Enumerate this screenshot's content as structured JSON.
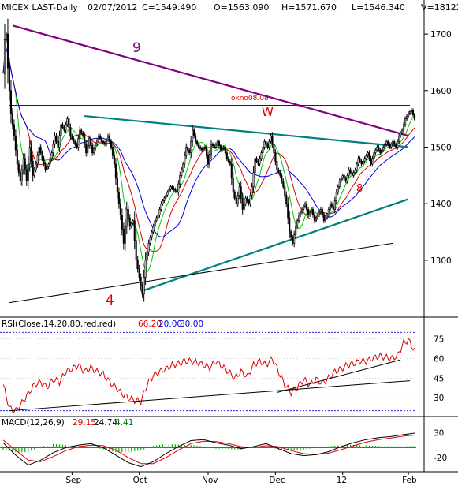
{
  "header": {
    "symbol": "MICEX LAST-Daily",
    "date": "02/07/2012",
    "close": "C=1549.490",
    "open": "O=1563.090",
    "high": "H=1571.670",
    "low": "L=1546.340",
    "volume": "V=18122"
  },
  "colors": {
    "background": "#ffffff",
    "candle_up": "#ffffff",
    "candle_down": "#000000",
    "ma_short": "#00cc00",
    "ma_mid": "#dd0000",
    "ma_long": "#0000dd",
    "trend_resistance": "#800080",
    "trend_teal": "#008080",
    "rsi": "#dd0000",
    "macd": "#000000",
    "macd_signal": "#dd0000",
    "macd_hist": "#00aa00"
  },
  "annotations": {
    "wave_9": "9",
    "wave_4": "4",
    "wave_8": "8",
    "wave_w": "W",
    "okno": "okno08.08"
  },
  "chart_data": [
    {
      "type": "candlestick",
      "title": "MICEX LAST-Daily",
      "ylim": [
        1205,
        1735
      ],
      "y_ticks": [
        1300,
        1400,
        1500,
        1600,
        1700
      ],
      "x_tick_labels": [
        "Sep",
        "Oct",
        "Nov",
        "Dec",
        "12",
        "Feb"
      ],
      "x_tick_days": [
        44,
        87,
        131,
        174,
        217,
        259
      ],
      "grid": false,
      "last_close": 1549.49,
      "horizontal_level": 1574,
      "close_path": [
        [
          0,
          1630
        ],
        [
          1,
          1690
        ],
        [
          2,
          1700
        ],
        [
          3,
          1640
        ],
        [
          5,
          1560
        ],
        [
          7,
          1520
        ],
        [
          9,
          1470
        ],
        [
          11,
          1440
        ],
        [
          13,
          1480
        ],
        [
          15,
          1440
        ],
        [
          17,
          1500
        ],
        [
          19,
          1450
        ],
        [
          21,
          1470
        ],
        [
          23,
          1500
        ],
        [
          25,
          1480
        ],
        [
          27,
          1460
        ],
        [
          29,
          1470
        ],
        [
          31,
          1490
        ],
        [
          33,
          1520
        ],
        [
          35,
          1500
        ],
        [
          37,
          1540
        ],
        [
          39,
          1530
        ],
        [
          41,
          1550
        ],
        [
          43,
          1520
        ],
        [
          45,
          1510
        ],
        [
          47,
          1500
        ],
        [
          49,
          1530
        ],
        [
          51,
          1520
        ],
        [
          53,
          1490
        ],
        [
          55,
          1515
        ],
        [
          57,
          1490
        ],
        [
          59,
          1505
        ],
        [
          61,
          1520
        ],
        [
          63,
          1510
        ],
        [
          65,
          1505
        ],
        [
          67,
          1520
        ],
        [
          69,
          1500
        ],
        [
          71,
          1470
        ],
        [
          73,
          1420
        ],
        [
          75,
          1380
        ],
        [
          77,
          1330
        ],
        [
          79,
          1390
        ],
        [
          81,
          1360
        ],
        [
          83,
          1370
        ],
        [
          85,
          1300
        ],
        [
          87,
          1270
        ],
        [
          89,
          1240
        ],
        [
          91,
          1300
        ],
        [
          93,
          1330
        ],
        [
          95,
          1350
        ],
        [
          97,
          1370
        ],
        [
          99,
          1380
        ],
        [
          101,
          1400
        ],
        [
          103,
          1410
        ],
        [
          105,
          1420
        ],
        [
          107,
          1430
        ],
        [
          109,
          1425
        ],
        [
          111,
          1420
        ],
        [
          113,
          1450
        ],
        [
          115,
          1470
        ],
        [
          117,
          1500
        ],
        [
          119,
          1490
        ],
        [
          121,
          1530
        ],
        [
          123,
          1510
        ],
        [
          125,
          1500
        ],
        [
          127,
          1495
        ],
        [
          129,
          1500
        ],
        [
          131,
          1470
        ],
        [
          133,
          1505
        ],
        [
          135,
          1500
        ],
        [
          137,
          1510
        ],
        [
          139,
          1495
        ],
        [
          141,
          1500
        ],
        [
          143,
          1480
        ],
        [
          145,
          1470
        ],
        [
          147,
          1420
        ],
        [
          149,
          1400
        ],
        [
          151,
          1430
        ],
        [
          153,
          1390
        ],
        [
          155,
          1410
        ],
        [
          157,
          1400
        ],
        [
          159,
          1430
        ],
        [
          161,
          1480
        ],
        [
          163,
          1470
        ],
        [
          165,
          1490
        ],
        [
          167,
          1510
        ],
        [
          169,
          1500
        ],
        [
          171,
          1520
        ],
        [
          173,
          1490
        ],
        [
          175,
          1460
        ],
        [
          177,
          1450
        ],
        [
          179,
          1430
        ],
        [
          181,
          1400
        ],
        [
          183,
          1350
        ],
        [
          185,
          1330
        ],
        [
          187,
          1360
        ],
        [
          189,
          1380
        ],
        [
          191,
          1390
        ],
        [
          193,
          1400
        ],
        [
          195,
          1380
        ],
        [
          197,
          1390
        ],
        [
          199,
          1370
        ],
        [
          201,
          1380
        ],
        [
          203,
          1390
        ],
        [
          205,
          1370
        ],
        [
          207,
          1380
        ],
        [
          209,
          1400
        ],
        [
          211,
          1390
        ],
        [
          213,
          1420
        ],
        [
          215,
          1440
        ],
        [
          217,
          1450
        ],
        [
          219,
          1440
        ],
        [
          221,
          1460
        ],
        [
          223,
          1450
        ],
        [
          225,
          1460
        ],
        [
          227,
          1480
        ],
        [
          229,
          1470
        ],
        [
          231,
          1480
        ],
        [
          233,
          1490
        ],
        [
          235,
          1470
        ],
        [
          237,
          1490
        ],
        [
          239,
          1500
        ],
        [
          241,
          1490
        ],
        [
          243,
          1500
        ],
        [
          245,
          1510
        ],
        [
          247,
          1500
        ],
        [
          249,
          1510
        ],
        [
          251,
          1500
        ],
        [
          253,
          1520
        ],
        [
          255,
          1530
        ],
        [
          257,
          1550
        ],
        [
          259,
          1560
        ],
        [
          261,
          1565
        ],
        [
          263,
          1549
        ]
      ],
      "series": [
        {
          "name": "",
          "values": "moving averages (green, red, blue)"
        }
      ],
      "trendlines": [
        {
          "label": "9",
          "from": [
            6,
            1715
          ],
          "to": [
            259,
            1520
          ]
        },
        {
          "label": "",
          "from": [
            52,
            1555
          ],
          "to": [
            259,
            1500
          ]
        },
        {
          "label": "",
          "from": [
            88,
            1245
          ],
          "to": [
            259,
            1408
          ]
        },
        {
          "label": "",
          "from": [
            4,
            1225
          ],
          "to": [
            249,
            1330
          ]
        }
      ]
    },
    {
      "type": "line",
      "title": "RSI(Close,14,20,80,red,red)",
      "legend": [
        "66.20",
        "20.00",
        "80.00"
      ],
      "ylim": [
        18,
        82
      ],
      "y_ticks": [
        30,
        45,
        60,
        75
      ],
      "levels": [
        20,
        80
      ],
      "last_value": 66.2,
      "values": [
        [
          0,
          40
        ],
        [
          4,
          22
        ],
        [
          8,
          20
        ],
        [
          12,
          26
        ],
        [
          16,
          33
        ],
        [
          20,
          40
        ],
        [
          24,
          42
        ],
        [
          28,
          38
        ],
        [
          32,
          44
        ],
        [
          36,
          42
        ],
        [
          40,
          50
        ],
        [
          44,
          52
        ],
        [
          48,
          55
        ],
        [
          52,
          50
        ],
        [
          56,
          53
        ],
        [
          60,
          50
        ],
        [
          64,
          48
        ],
        [
          68,
          42
        ],
        [
          72,
          38
        ],
        [
          76,
          33
        ],
        [
          80,
          30
        ],
        [
          84,
          28
        ],
        [
          88,
          27
        ],
        [
          92,
          40
        ],
        [
          96,
          47
        ],
        [
          100,
          50
        ],
        [
          104,
          52
        ],
        [
          108,
          55
        ],
        [
          112,
          56
        ],
        [
          116,
          58
        ],
        [
          120,
          58
        ],
        [
          124,
          57
        ],
        [
          128,
          55
        ],
        [
          132,
          53
        ],
        [
          136,
          58
        ],
        [
          140,
          54
        ],
        [
          144,
          50
        ],
        [
          148,
          45
        ],
        [
          152,
          50
        ],
        [
          156,
          46
        ],
        [
          160,
          55
        ],
        [
          164,
          58
        ],
        [
          168,
          55
        ],
        [
          172,
          60
        ],
        [
          176,
          50
        ],
        [
          180,
          40
        ],
        [
          184,
          34
        ],
        [
          188,
          38
        ],
        [
          192,
          44
        ],
        [
          196,
          40
        ],
        [
          200,
          44
        ],
        [
          204,
          41
        ],
        [
          208,
          45
        ],
        [
          212,
          50
        ],
        [
          216,
          52
        ],
        [
          220,
          55
        ],
        [
          224,
          56
        ],
        [
          228,
          58
        ],
        [
          232,
          58
        ],
        [
          236,
          60
        ],
        [
          240,
          62
        ],
        [
          244,
          61
        ],
        [
          248,
          60
        ],
        [
          252,
          62
        ],
        [
          256,
          72
        ],
        [
          259,
          74
        ],
        [
          263,
          66
        ]
      ],
      "trendlines": [
        {
          "from": [
            4,
            20
          ],
          "to": [
            260,
            43
          ]
        },
        {
          "from": [
            175,
            34
          ],
          "to": [
            254,
            59
          ]
        }
      ]
    },
    {
      "type": "line",
      "title": "MACD(12,26,9)",
      "legend": [
        "29.15",
        "24.74",
        "4.41"
      ],
      "ylim": [
        -45,
        40
      ],
      "y_ticks": [
        -20,
        30
      ],
      "zero_line": 0,
      "last_values": {
        "macd": 29.15,
        "signal": 24.74,
        "hist": 4.41
      },
      "series": [
        {
          "name": "",
          "values": [
            [
              0,
              10
            ],
            [
              8,
              -15
            ],
            [
              16,
              -35
            ],
            [
              24,
              -25
            ],
            [
              32,
              -10
            ],
            [
              40,
              0
            ],
            [
              48,
              5
            ],
            [
              56,
              8
            ],
            [
              64,
              0
            ],
            [
              72,
              -15
            ],
            [
              80,
              -30
            ],
            [
              88,
              -38
            ],
            [
              96,
              -28
            ],
            [
              104,
              -12
            ],
            [
              112,
              2
            ],
            [
              120,
              14
            ],
            [
              128,
              16
            ],
            [
              136,
              10
            ],
            [
              144,
              5
            ],
            [
              152,
              -2
            ],
            [
              160,
              2
            ],
            [
              168,
              8
            ],
            [
              176,
              -2
            ],
            [
              184,
              -12
            ],
            [
              192,
              -16
            ],
            [
              200,
              -14
            ],
            [
              208,
              -8
            ],
            [
              216,
              2
            ],
            [
              224,
              10
            ],
            [
              232,
              16
            ],
            [
              240,
              20
            ],
            [
              248,
              22
            ],
            [
              256,
              26
            ],
            [
              263,
              29
            ]
          ]
        },
        {
          "name": "",
          "values": [
            [
              0,
              15
            ],
            [
              8,
              -5
            ],
            [
              16,
              -25
            ],
            [
              24,
              -28
            ],
            [
              32,
              -18
            ],
            [
              40,
              -6
            ],
            [
              48,
              2
            ],
            [
              56,
              5
            ],
            [
              64,
              4
            ],
            [
              72,
              -5
            ],
            [
              80,
              -20
            ],
            [
              88,
              -32
            ],
            [
              96,
              -32
            ],
            [
              104,
              -20
            ],
            [
              112,
              -5
            ],
            [
              120,
              8
            ],
            [
              128,
              13
            ],
            [
              136,
              12
            ],
            [
              144,
              8
            ],
            [
              152,
              2
            ],
            [
              160,
              0
            ],
            [
              168,
              4
            ],
            [
              176,
              2
            ],
            [
              184,
              -6
            ],
            [
              192,
              -12
            ],
            [
              200,
              -14
            ],
            [
              208,
              -11
            ],
            [
              216,
              -4
            ],
            [
              224,
              4
            ],
            [
              232,
              11
            ],
            [
              240,
              16
            ],
            [
              248,
              19
            ],
            [
              256,
              23
            ],
            [
              263,
              25
            ]
          ]
        }
      ]
    }
  ]
}
